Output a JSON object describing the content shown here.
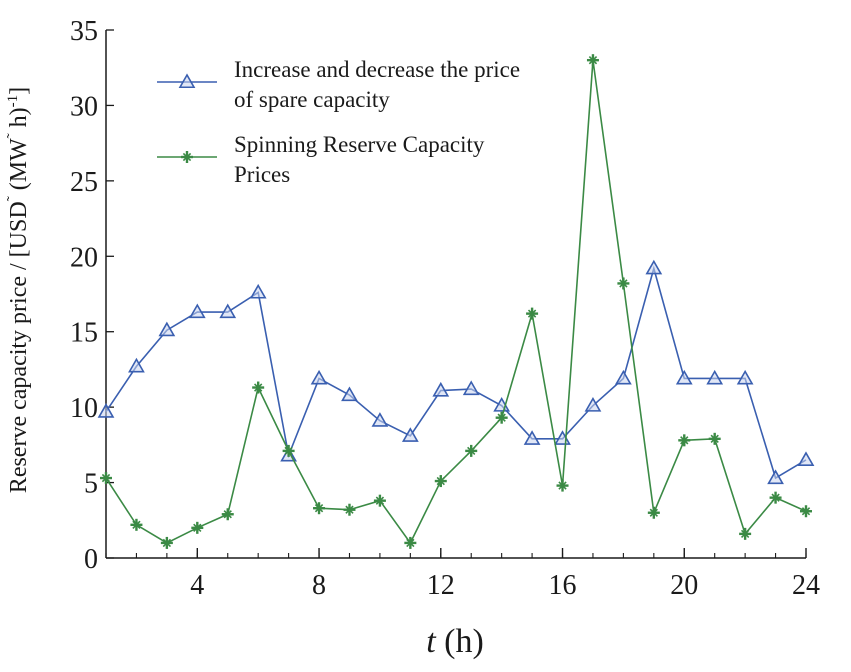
{
  "chart_data": {
    "type": "line",
    "title": "",
    "xlabel_italic": "t",
    "xlabel_unit": " (h)",
    "ylabel_text": "Reserve capacity price / [USD",
    "ylabel_mid": "  (MW",
    "ylabel_h": "  h)",
    "ylabel_sup": "-1",
    "ylabel_close": "]",
    "ylabel_sep": "˜",
    "xlim": [
      1,
      24
    ],
    "ylim": [
      0,
      35
    ],
    "xticks": [
      4,
      8,
      12,
      16,
      20,
      24
    ],
    "yticks": [
      0,
      5,
      10,
      15,
      20,
      25,
      30,
      35
    ],
    "grid": false,
    "legend_position": "top-left",
    "x": [
      1,
      2,
      3,
      4,
      5,
      6,
      7,
      8,
      9,
      10,
      11,
      12,
      13,
      14,
      15,
      16,
      17,
      18,
      19,
      20,
      21,
      22,
      23,
      24
    ],
    "series": [
      {
        "name": "Increase and decrease the price of spare capacity",
        "legend_lines": [
          "Increase and decrease the price",
          "of spare capacity"
        ],
        "color": "#3a5fb0",
        "marker": "triangle",
        "values": [
          9.7,
          12.7,
          15.1,
          16.3,
          16.3,
          17.6,
          6.8,
          11.9,
          10.8,
          9.1,
          8.1,
          11.1,
          11.2,
          10.1,
          7.9,
          7.9,
          10.1,
          11.9,
          19.2,
          11.9,
          11.9,
          11.9,
          5.3,
          6.5
        ]
      },
      {
        "name": "Spinning Reserve Capacity Prices",
        "legend_lines": [
          "Spinning Reserve Capacity",
          "Prices"
        ],
        "color": "#3b8a45",
        "marker": "star",
        "values": [
          5.3,
          2.2,
          1.0,
          2.0,
          2.9,
          11.3,
          7.1,
          3.3,
          3.2,
          3.8,
          1.0,
          5.1,
          7.1,
          9.3,
          16.2,
          4.8,
          33.0,
          18.2,
          3.0,
          7.8,
          7.9,
          1.6,
          4.0,
          3.1
        ]
      }
    ]
  }
}
